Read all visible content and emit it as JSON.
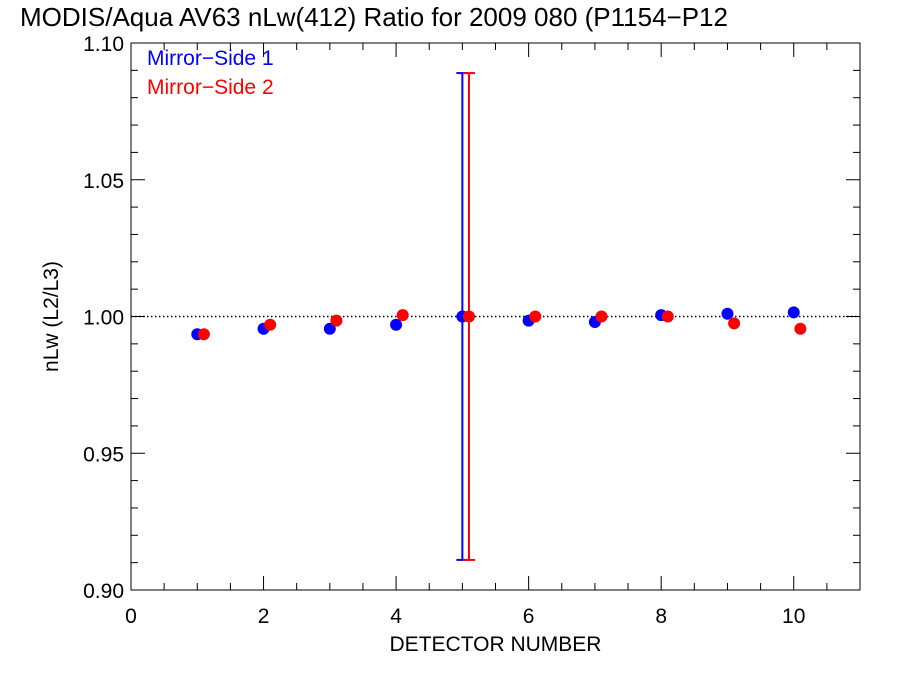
{
  "chart_data": {
    "type": "scatter",
    "title": "MODIS/Aqua AV63 nLw(412) Ratio for 2009 080 (P1154−P12",
    "xlabel": "DETECTOR NUMBER",
    "ylabel": "nLw (L2/L3)",
    "xlim": [
      0,
      11
    ],
    "ylim": [
      0.9,
      1.1
    ],
    "xticks": [
      0,
      2,
      4,
      6,
      8,
      10
    ],
    "xtick_labels": [
      "0",
      "2",
      "4",
      "6",
      "8",
      "10"
    ],
    "yticks": [
      0.9,
      0.95,
      1.0,
      1.05,
      1.1
    ],
    "ytick_labels": [
      "0.90",
      "0.95",
      "1.00",
      "1.05",
      "1.10"
    ],
    "reference_line": 1.0,
    "legend_position": "top-left",
    "series": [
      {
        "name": "Mirror−Side 1",
        "color": "#0000ff",
        "x": [
          1,
          2,
          3,
          4,
          5,
          6,
          7,
          8,
          9,
          10
        ],
        "y": [
          0.9935,
          0.9955,
          0.9955,
          0.997,
          1.0,
          0.9985,
          0.998,
          1.0005,
          1.001,
          1.0015
        ],
        "errorbar": {
          "x": 5,
          "low": 0.911,
          "high": 1.089
        }
      },
      {
        "name": "Mirror−Side 2",
        "color": "#ff0000",
        "x": [
          1.1,
          2.1,
          3.1,
          4.1,
          5.1,
          6.1,
          7.1,
          8.1,
          9.1,
          10.1
        ],
        "y": [
          0.9935,
          0.997,
          0.9985,
          1.0005,
          1.0,
          1.0,
          1.0,
          1.0,
          0.9975,
          0.9955
        ],
        "errorbar": {
          "x": 5.1,
          "low": 0.911,
          "high": 1.089
        }
      }
    ]
  }
}
